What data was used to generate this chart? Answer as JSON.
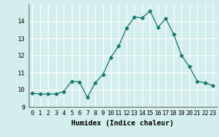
{
  "x": [
    0,
    1,
    2,
    3,
    4,
    5,
    6,
    7,
    8,
    9,
    10,
    11,
    12,
    13,
    14,
    15,
    16,
    17,
    18,
    19,
    20,
    21,
    22,
    23
  ],
  "y": [
    9.8,
    9.75,
    9.75,
    9.75,
    9.9,
    10.5,
    10.45,
    9.55,
    10.4,
    10.9,
    11.9,
    12.55,
    13.6,
    14.25,
    14.2,
    14.6,
    13.65,
    14.15,
    13.25,
    12.0,
    11.35,
    10.5,
    10.4,
    10.25
  ],
  "line_color": "#1a7a6e",
  "marker": "D",
  "marker_size": 2.5,
  "bg_color": "#d4eeee",
  "grid_color": "#ffffff",
  "xlabel": "Humidex (Indice chaleur)",
  "xlim": [
    -0.5,
    23.5
  ],
  "ylim": [
    9.0,
    15.0
  ],
  "yticks": [
    9,
    10,
    11,
    12,
    13,
    14
  ],
  "xticks": [
    0,
    1,
    2,
    3,
    4,
    5,
    6,
    7,
    8,
    9,
    10,
    11,
    12,
    13,
    14,
    15,
    16,
    17,
    18,
    19,
    20,
    21,
    22,
    23
  ],
  "tick_fontsize": 6.5,
  "label_fontsize": 7.5
}
